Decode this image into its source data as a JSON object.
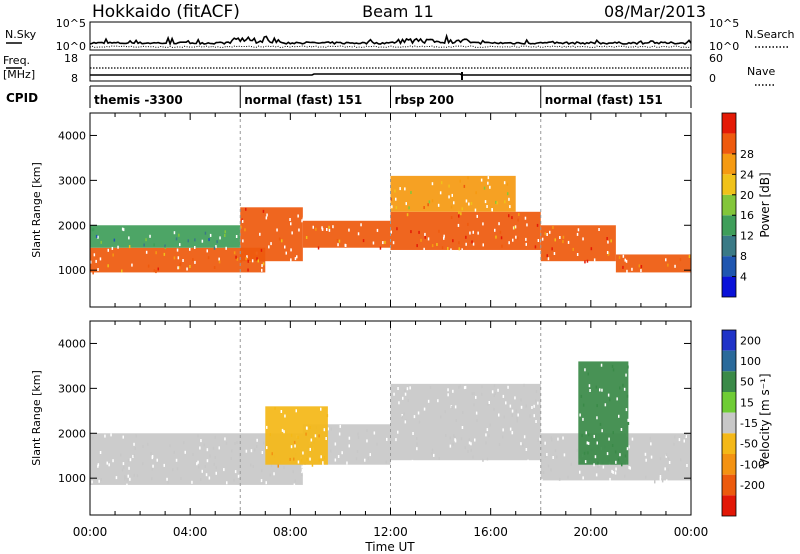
{
  "header": {
    "title": "Hokkaido (fitACF)",
    "beam": "Beam 11",
    "date": "08/Mar/2013"
  },
  "strips": {
    "nsky": {
      "label": "N.Sky",
      "ticks": [
        "10^5",
        "10^0"
      ],
      "right_label": "N.Search",
      "right_ticks": [
        "10^5",
        "10^0"
      ]
    },
    "freq": {
      "label_line1": "Freq.",
      "label_line2": "[MHz]",
      "ticks": [
        "18",
        "8"
      ],
      "right_label": "Nave",
      "right_ticks": [
        "60",
        "0"
      ]
    },
    "cpid": {
      "label": "CPID",
      "programs": [
        {
          "name": "themis -3300",
          "start_hour": 0
        },
        {
          "name": "normal (fast) 151",
          "start_hour": 6
        },
        {
          "name": "rbsp 200",
          "start_hour": 12
        },
        {
          "name": "normal (fast) 151",
          "start_hour": 18
        }
      ]
    }
  },
  "time_axis": {
    "label": "Time UT",
    "ticks": [
      "00:00",
      "04:00",
      "08:00",
      "12:00",
      "16:00",
      "20:00",
      "00:00"
    ]
  },
  "power_panel": {
    "ylabel": "Slant Range [km]",
    "yticks": [
      "1000",
      "2000",
      "3000",
      "4000"
    ],
    "colorbar_label": "Power [dB]",
    "colorbar_ticks": [
      "4",
      "8",
      "12",
      "16",
      "20",
      "24",
      "28"
    ],
    "colors": [
      "#0a12d8",
      "#1f56b0",
      "#3a7a86",
      "#3f9e5a",
      "#83c63a",
      "#f0c21a",
      "#f59a12",
      "#ee5a0e",
      "#e41a06"
    ]
  },
  "velocity_panel": {
    "ylabel": "Slant Range [km]",
    "yticks": [
      "1000",
      "2000",
      "3000",
      "4000"
    ],
    "colorbar_label": "Velocity [m s⁻¹]",
    "colorbar_ticks": [
      "200",
      "100",
      "50",
      "15",
      "-15",
      "-50",
      "-100",
      "-200"
    ],
    "colors": [
      "#1f33c8",
      "#2a6a9a",
      "#3a8a48",
      "#6fcc35",
      "#c8c8c8",
      "#f4b818",
      "#f39212",
      "#ec5a0d",
      "#e21706"
    ]
  },
  "chart_data": {
    "type": "heatmap",
    "x_range_hours": [
      0,
      24
    ],
    "y_range_km": [
      180,
      4500
    ],
    "power_bands": [
      {
        "start_hour": 0,
        "end_hour": 7,
        "low_km": 950,
        "high_km": 1500,
        "power_db": 28
      },
      {
        "start_hour": 0,
        "end_hour": 6,
        "low_km": 1500,
        "high_km": 2000,
        "power_db": 14
      },
      {
        "start_hour": 6,
        "end_hour": 8.5,
        "low_km": 1200,
        "high_km": 2400,
        "power_db": 28
      },
      {
        "start_hour": 8.5,
        "end_hour": 12,
        "low_km": 1500,
        "high_km": 2100,
        "power_db": 28
      },
      {
        "start_hour": 12,
        "end_hour": 18,
        "low_km": 1450,
        "high_km": 2300,
        "power_db": 28
      },
      {
        "start_hour": 12,
        "end_hour": 17,
        "low_km": 2300,
        "high_km": 3100,
        "power_db": 24
      },
      {
        "start_hour": 18,
        "end_hour": 21,
        "low_km": 1200,
        "high_km": 2000,
        "power_db": 28
      },
      {
        "start_hour": 21,
        "end_hour": 24,
        "low_km": 950,
        "high_km": 1350,
        "power_db": 28
      }
    ],
    "velocity_bands": [
      {
        "start_hour": 0,
        "end_hour": 8.5,
        "low_km": 850,
        "high_km": 2000,
        "velocity": 0
      },
      {
        "start_hour": 8.5,
        "end_hour": 12,
        "low_km": 1300,
        "high_km": 2200,
        "velocity": 0
      },
      {
        "start_hour": 12,
        "end_hour": 18,
        "low_km": 1400,
        "high_km": 3100,
        "velocity": 0
      },
      {
        "start_hour": 18,
        "end_hour": 24,
        "low_km": 950,
        "high_km": 2000,
        "velocity": 0
      },
      {
        "start_hour": 7,
        "end_hour": 9.5,
        "low_km": 1300,
        "high_km": 2600,
        "velocity": -50
      },
      {
        "start_hour": 19.5,
        "end_hour": 21.5,
        "low_km": 1300,
        "high_km": 3600,
        "velocity": 80
      }
    ]
  }
}
